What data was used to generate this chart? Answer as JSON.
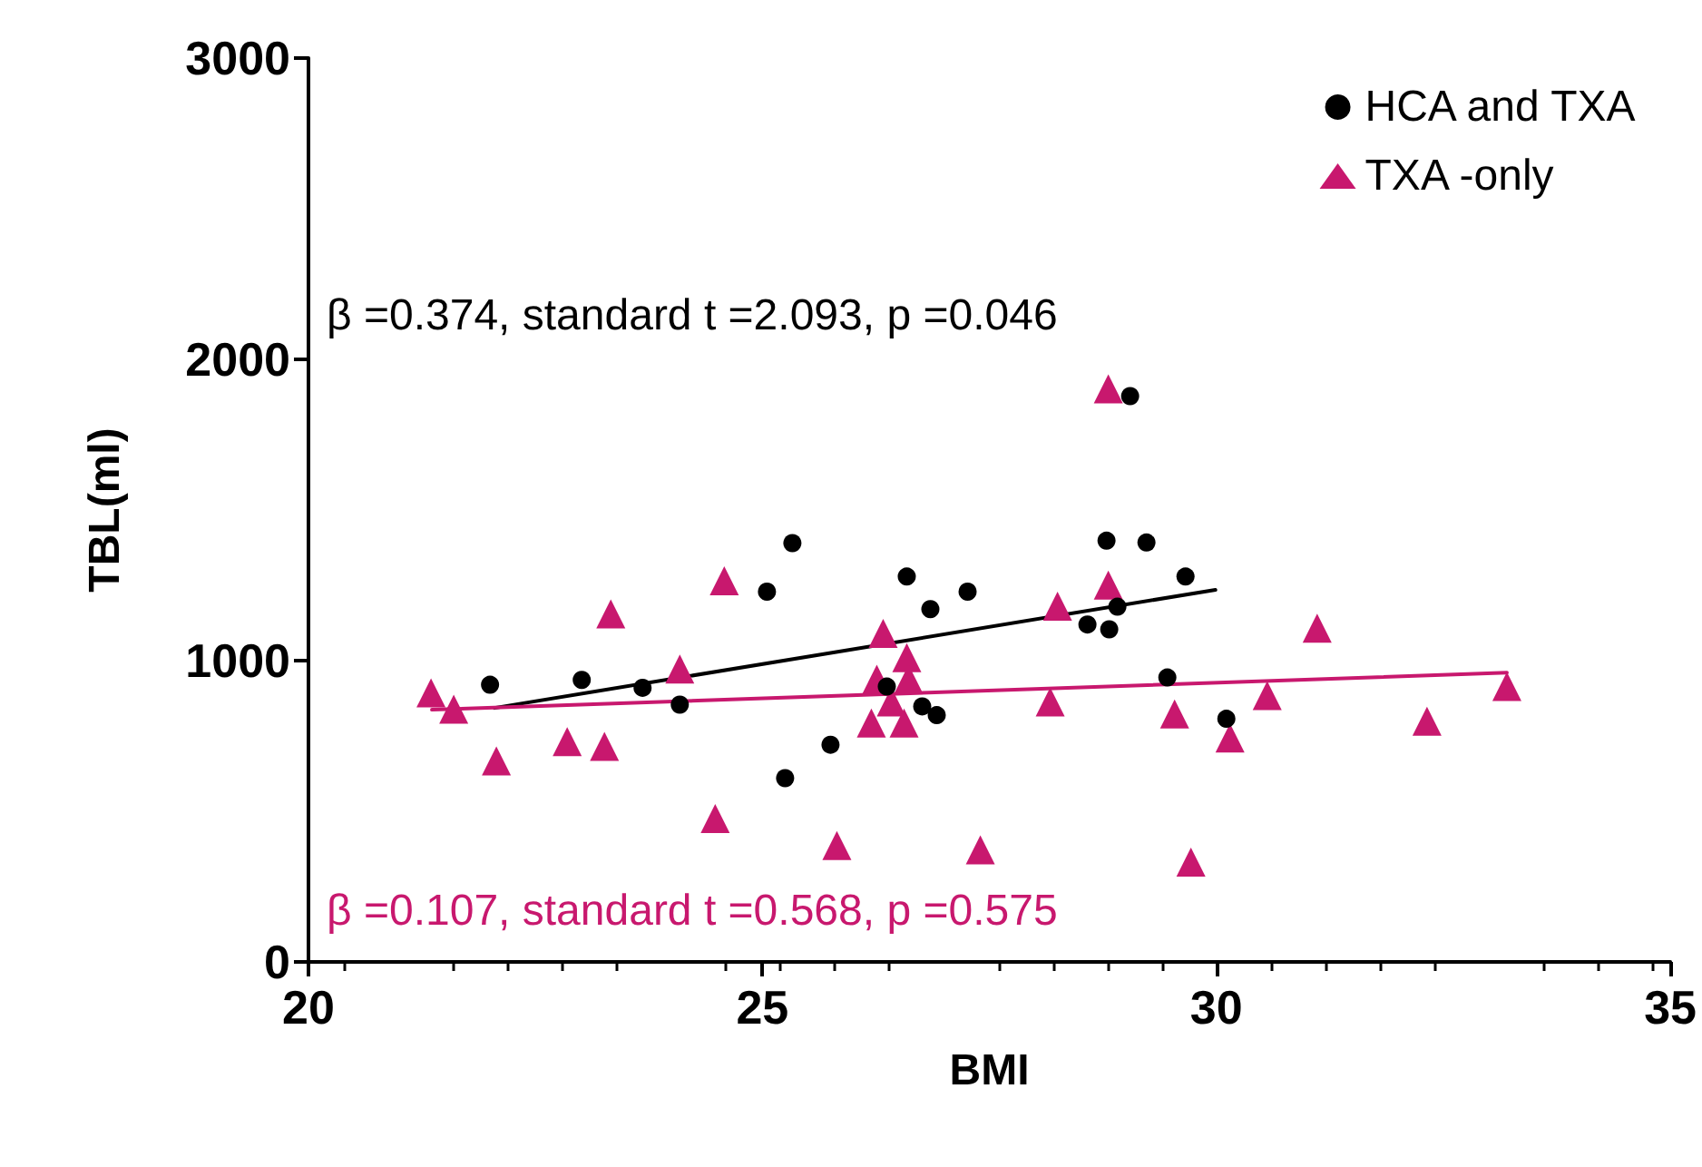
{
  "chart_data": {
    "type": "scatter",
    "xlabel": "BMI",
    "ylabel": "TBL(ml)",
    "xlim": [
      20,
      35
    ],
    "xticks": [
      20,
      25,
      30,
      35
    ],
    "ylim": [
      0,
      3000
    ],
    "yticks": [
      0,
      1000,
      2000,
      3000
    ],
    "grid": false,
    "legend": "top right",
    "annotations": [
      "β =0.374, standard t =2.093, p =0.046",
      "β =0.107, standard t =0.568, p =0.575"
    ],
    "series": [
      {
        "name": "HCA and TXA",
        "color": "#000000",
        "marker": "circle",
        "x": [
          22.0,
          23.01,
          23.68,
          24.09,
          25.05,
          25.33,
          25.25,
          25.75,
          26.37,
          26.59,
          26.76,
          26.92,
          26.85,
          27.26,
          28.58,
          28.79,
          28.82,
          28.91,
          29.23,
          29.05,
          29.66,
          29.46,
          30.11
        ],
        "values": [
          920,
          936,
          910,
          854,
          1229,
          1390,
          610,
          721,
          914,
          1279,
          848,
          819,
          1171,
          1229,
          1120,
          1398,
          1104,
          1179,
          1392,
          1878,
          1279,
          944,
          807
        ]
      },
      {
        "name": "TXA -only",
        "color": "#c8186e",
        "marker": "triangle",
        "x": [
          21.35,
          21.6,
          22.07,
          22.85,
          23.26,
          23.33,
          24.09,
          24.58,
          24.48,
          25.82,
          26.33,
          26.59,
          26.26,
          26.61,
          26.42,
          26.2,
          26.56,
          27.4,
          28.25,
          28.17,
          28.81,
          28.81,
          29.54,
          29.72,
          30.15,
          30.56,
          31.11,
          32.32,
          33.2
        ],
        "values": [
          893,
          839,
          667,
          731,
          715,
          1155,
          972,
          1265,
          476,
          386,
          1090,
          1010,
          938,
          938,
          863,
          793,
          793,
          372,
          1181,
          863,
          1251,
          1902,
          823,
          331,
          743,
          884,
          1108,
          799,
          914
        ]
      },
      {
        "type": "line",
        "color": "#000000",
        "marker": "none",
        "x": [
          22.05,
          29.99
        ],
        "values": [
          843,
          1235
        ]
      },
      {
        "type": "line",
        "color": "#c8186e",
        "marker": "none",
        "x": [
          21.36,
          33.2
        ],
        "values": [
          837,
          960
        ]
      }
    ]
  }
}
